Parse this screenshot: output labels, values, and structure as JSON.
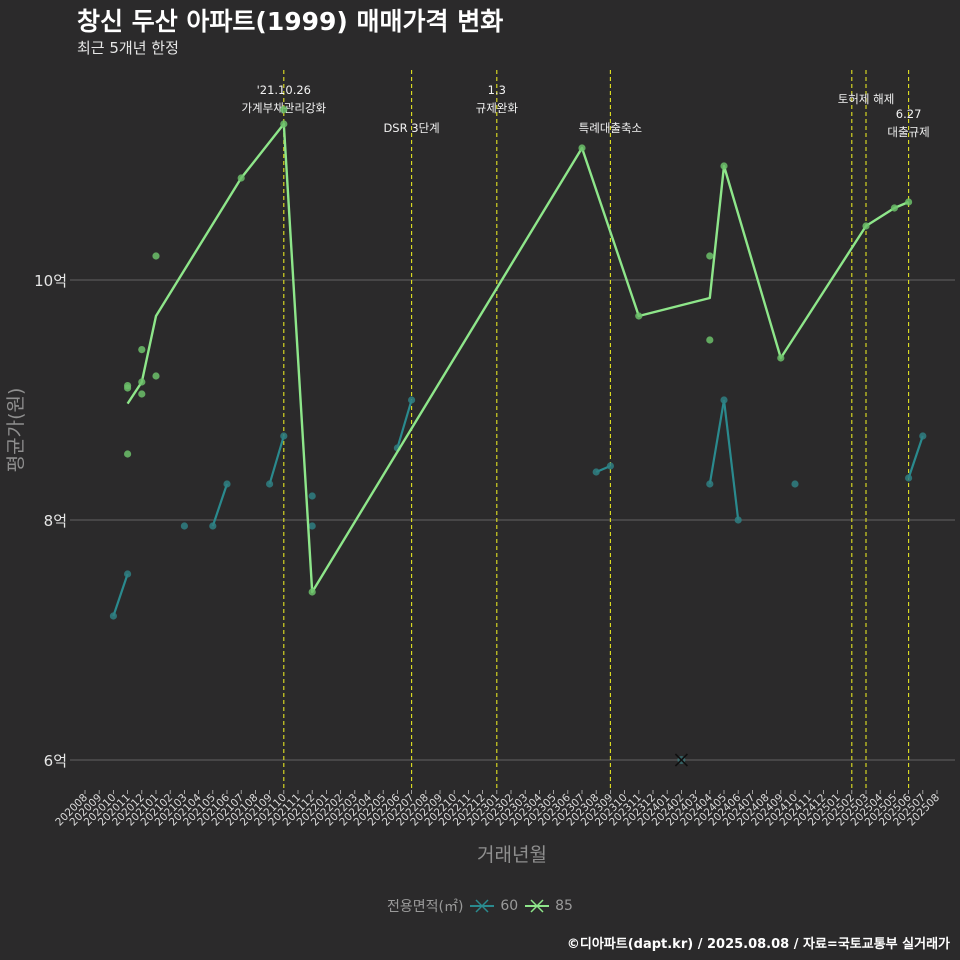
{
  "header": {
    "title": "창신 두산 아파트(1999) 매매가격 변화",
    "subtitle": "최근 5개년 한정"
  },
  "caption": "©디아파트(dapt.kr) / 2025.08.08 / 자료=국토교통부 실거래가",
  "colors": {
    "background": "#2b2a2b",
    "grid": "#777777",
    "s60": "#2a8a8e",
    "s60_point": "#2f7f83",
    "s85": "#8ee68a",
    "s85_point": "#6cc06a",
    "vline": "#e3e322"
  },
  "chart_data": {
    "type": "line",
    "title": "창신 두산 아파트(1999) 매매가격 변화",
    "subtitle": "최근 5개년 한정",
    "xlabel": "거래년월",
    "ylabel": "평균가(원)",
    "ylim": [
      5.75,
      11.75
    ],
    "yticks": [
      {
        "value": 6,
        "label": "6억"
      },
      {
        "value": 8,
        "label": "8억"
      },
      {
        "value": 10,
        "label": "10억"
      }
    ],
    "categories": [
      "202008",
      "202009",
      "202010",
      "202011",
      "202012",
      "202101",
      "202102",
      "202103",
      "202104",
      "202105",
      "202106",
      "202107",
      "202108",
      "202109",
      "202110",
      "202111",
      "202112",
      "202201",
      "202202",
      "202203",
      "202204",
      "202205",
      "202206",
      "202207",
      "202208",
      "202209",
      "202210",
      "202211",
      "202212",
      "202301",
      "202302",
      "202303",
      "202304",
      "202305",
      "202306",
      "202307",
      "202308",
      "202309",
      "202310",
      "202311",
      "202312",
      "202401",
      "202402",
      "202403",
      "202404",
      "202405",
      "202406",
      "202407",
      "202408",
      "202409",
      "202410",
      "202411",
      "202412",
      "202501",
      "202502",
      "202503",
      "202504",
      "202505",
      "202506",
      "202507",
      "202508"
    ],
    "legend": {
      "title": "전용면적(㎡)",
      "entries": [
        "60",
        "85"
      ]
    },
    "series": [
      {
        "name": "60",
        "line": [
          {
            "x": "202010",
            "y": 7.2
          },
          {
            "x": "202011",
            "y": 7.55
          },
          {
            "x": "202105",
            "y": 7.95
          },
          {
            "x": "202106",
            "y": 8.3
          },
          {
            "x": "202109",
            "y": 8.3
          },
          {
            "x": "202110",
            "y": 8.7
          },
          {
            "x": "202206",
            "y": 8.6
          },
          {
            "x": "202207",
            "y": 9.0
          },
          {
            "x": "202308",
            "y": 8.4
          },
          {
            "x": "202309",
            "y": 8.45
          },
          {
            "x": "202404",
            "y": 8.3
          },
          {
            "x": "202405",
            "y": 9.0
          },
          {
            "x": "202406",
            "y": 8.0
          },
          {
            "x": "202506",
            "y": 8.35
          },
          {
            "x": "202507",
            "y": 8.7
          }
        ],
        "points": [
          {
            "x": "202010",
            "y": 7.2
          },
          {
            "x": "202011",
            "y": 7.55
          },
          {
            "x": "202103",
            "y": 7.95
          },
          {
            "x": "202105",
            "y": 7.95
          },
          {
            "x": "202106",
            "y": 8.3
          },
          {
            "x": "202109",
            "y": 8.3
          },
          {
            "x": "202110",
            "y": 8.7
          },
          {
            "x": "202112",
            "y": 8.2
          },
          {
            "x": "202112",
            "y": 7.95
          },
          {
            "x": "202206",
            "y": 8.6
          },
          {
            "x": "202207",
            "y": 9.0
          },
          {
            "x": "202308",
            "y": 8.4
          },
          {
            "x": "202309",
            "y": 8.45
          },
          {
            "x": "202404",
            "y": 8.3
          },
          {
            "x": "202405",
            "y": 9.0
          },
          {
            "x": "202406",
            "y": 8.0
          },
          {
            "x": "202410",
            "y": 8.3
          },
          {
            "x": "202506",
            "y": 8.35
          },
          {
            "x": "202507",
            "y": 8.7
          }
        ],
        "crosses": [
          {
            "x": "202402",
            "y": 6.0
          }
        ]
      },
      {
        "name": "85",
        "line": [
          {
            "x": "202011",
            "y": 8.97
          },
          {
            "x": "202012",
            "y": 9.15
          },
          {
            "x": "202101",
            "y": 9.7
          },
          {
            "x": "202107",
            "y": 10.85
          },
          {
            "x": "202110",
            "y": 11.3
          },
          {
            "x": "202112",
            "y": 7.4
          },
          {
            "x": "202307",
            "y": 11.1
          },
          {
            "x": "202311",
            "y": 9.7
          },
          {
            "x": "202404",
            "y": 9.85
          },
          {
            "x": "202405",
            "y": 10.95
          },
          {
            "x": "202409",
            "y": 9.35
          },
          {
            "x": "202503",
            "y": 10.45
          },
          {
            "x": "202505",
            "y": 10.6
          },
          {
            "x": "202506",
            "y": 10.65
          }
        ],
        "points": [
          {
            "x": "202011",
            "y": 9.1
          },
          {
            "x": "202011",
            "y": 9.12
          },
          {
            "x": "202011",
            "y": 8.55
          },
          {
            "x": "202012",
            "y": 9.42
          },
          {
            "x": "202012",
            "y": 9.15
          },
          {
            "x": "202012",
            "y": 9.05
          },
          {
            "x": "202101",
            "y": 10.2
          },
          {
            "x": "202101",
            "y": 9.2
          },
          {
            "x": "202107",
            "y": 10.85
          },
          {
            "x": "202110",
            "y": 11.42
          },
          {
            "x": "202110",
            "y": 11.3
          },
          {
            "x": "202112",
            "y": 7.4
          },
          {
            "x": "202307",
            "y": 11.1
          },
          {
            "x": "202311",
            "y": 9.7
          },
          {
            "x": "202404",
            "y": 10.2
          },
          {
            "x": "202404",
            "y": 9.5
          },
          {
            "x": "202405",
            "y": 10.95
          },
          {
            "x": "202409",
            "y": 9.35
          },
          {
            "x": "202503",
            "y": 10.45
          },
          {
            "x": "202505",
            "y": 10.6
          },
          {
            "x": "202506",
            "y": 10.65
          }
        ],
        "crosses": []
      }
    ],
    "annotations": [
      {
        "x": "202110",
        "lines": [
          "'21.10.26",
          "가계부채관리강화"
        ],
        "level": 0
      },
      {
        "x": "202207",
        "lines": [
          "DSR 3단계"
        ],
        "level": 1
      },
      {
        "x": "202301",
        "lines": [
          "1.3",
          "규제완화"
        ],
        "level": 0
      },
      {
        "x": "202309",
        "lines": [
          "특례대출축소"
        ],
        "level": 1
      },
      {
        "x": "202502",
        "lines": [],
        "level": 0
      },
      {
        "x": "202503",
        "lines": [
          "토허제 해제"
        ],
        "level": 0
      },
      {
        "x": "202506",
        "lines": [
          "6.27",
          "대출규제"
        ],
        "level": 1
      }
    ]
  }
}
